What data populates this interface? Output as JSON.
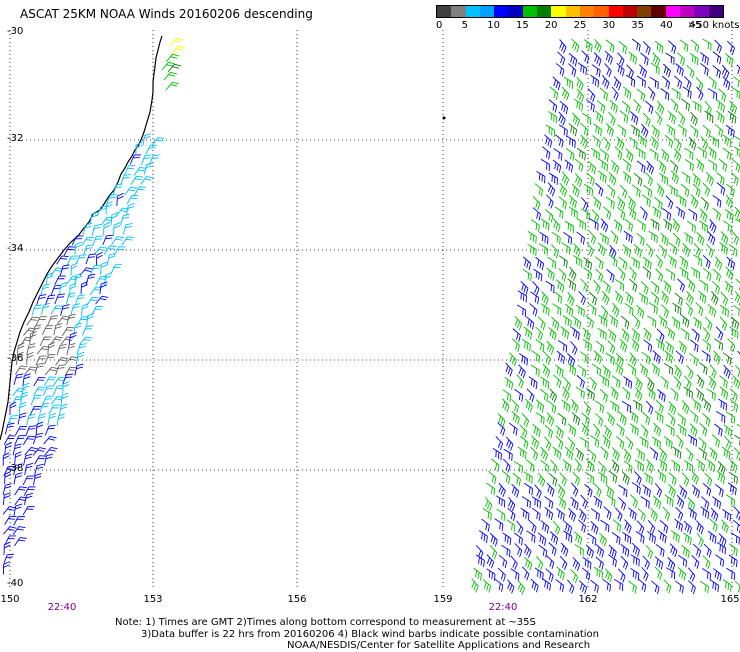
{
  "title": "ASCAT 25KM NOAA Winds 20160206 descending",
  "legend": {
    "colors": [
      "#404040",
      "#808080",
      "#00c0ff",
      "#00a0ff",
      "#0000ff",
      "#0000c0",
      "#00c000",
      "#008000",
      "#ffff00",
      "#ffc000",
      "#ff8000",
      "#ff6000",
      "#ff0000",
      "#c00000",
      "#804000",
      "#600000",
      "#ff00ff",
      "#c000c0",
      "#8000c0",
      "#400080"
    ],
    "labels": [
      "0",
      "5",
      "10",
      "15",
      "20",
      "25",
      "30",
      "35",
      "40",
      "45",
      ">50 knots"
    ]
  },
  "map": {
    "lat_labels": [
      "-30",
      "-32",
      "-34",
      "-36",
      "-38",
      "-40"
    ],
    "lon_labels": [
      "150",
      "153",
      "156",
      "159",
      "162",
      "165"
    ],
    "pass_times": [
      "22:40",
      "22:40"
    ],
    "colors": {
      "coast": "#000000",
      "grid": "#000000",
      "barb_cyan": "#00bfff",
      "barb_blue": "#0000ff",
      "barb_navy": "#0000b0",
      "barb_green": "#00c000",
      "barb_darkgreen": "#008000",
      "barb_gray": "#606060",
      "barb_yellow": "#ffff00"
    }
  },
  "notes": {
    "line1": "Note: 1) Times are GMT 2)Times along bottom correspond to measurement at ~35S",
    "line2": "3)Data buffer is 22 hrs from 20160206 4) Black wind barbs indicate possible contamination",
    "line3": "NOAA/NESDIS/Center for Satellite Applications and Research"
  }
}
